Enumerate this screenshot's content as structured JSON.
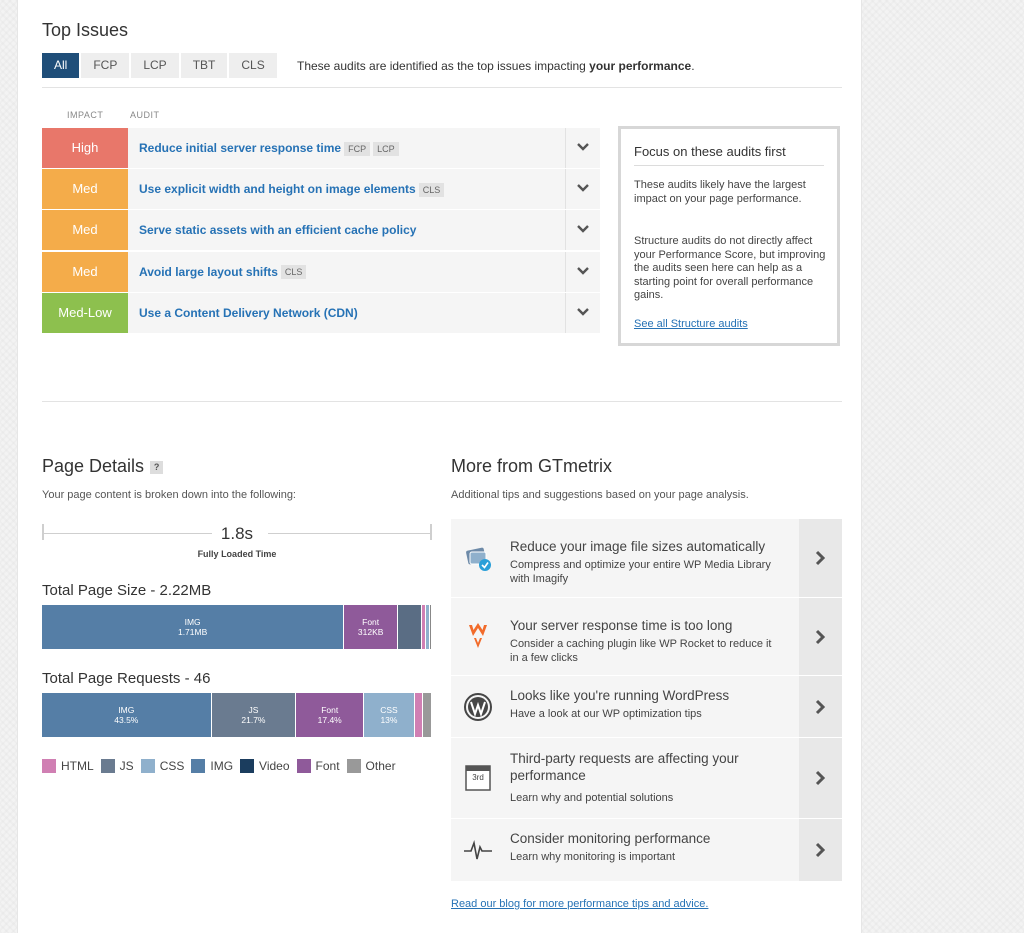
{
  "top_issues": {
    "title": "Top Issues",
    "tabs": [
      "All",
      "FCP",
      "LCP",
      "TBT",
      "CLS"
    ],
    "desc_prefix": "These audits are identified as the top issues impacting ",
    "desc_bold": "your performance",
    "desc_suffix": ".",
    "col_impact": "IMPACT",
    "col_audit": "AUDIT",
    "audits": [
      {
        "impact": "High",
        "color": "#e8776a",
        "title": "Reduce initial server response time",
        "tags": [
          "FCP",
          "LCP"
        ]
      },
      {
        "impact": "Med",
        "color": "#f4ac4a",
        "title": "Use explicit width and height on image elements",
        "tags": [
          "CLS"
        ]
      },
      {
        "impact": "Med",
        "color": "#f4ac4a",
        "title": "Serve static assets with an efficient cache policy",
        "tags": []
      },
      {
        "impact": "Med",
        "color": "#f4ac4a",
        "title": "Avoid large layout shifts",
        "tags": [
          "CLS"
        ]
      },
      {
        "impact": "Med-Low",
        "color": "#8dc04e",
        "title": "Use a Content Delivery Network (CDN)",
        "tags": []
      }
    ],
    "focus": {
      "title": "Focus on these audits first",
      "p1": "These audits likely have the largest impact on your page performance.",
      "p2": "Structure audits do not directly affect your Performance Score, but improving the audits seen here can help as a starting point for overall performance gains.",
      "link": "See all Structure audits"
    }
  },
  "page_details": {
    "title": "Page Details",
    "help": "?",
    "subtitle": "Your page content is broken down into the following:",
    "fully_loaded_value": "1.8s",
    "fully_loaded_label": "Fully Loaded Time",
    "size_title": "Total Page Size - 2.22MB",
    "size_segments": [
      {
        "label": "IMG",
        "value": "1.71MB",
        "share": 77.5,
        "color": "#557ea6"
      },
      {
        "label": "Font",
        "value": "312KB",
        "share": 13.8,
        "color": "#8f5a9a"
      },
      {
        "label": "",
        "value": "",
        "share": 6.2,
        "color": "#5a6d84"
      },
      {
        "label": "",
        "value": "",
        "share": 1.0,
        "color": "#d07fb3"
      },
      {
        "label": "",
        "value": "",
        "share": 1.0,
        "color": "#8fb0cc"
      },
      {
        "label": "",
        "value": "",
        "share": 0.5,
        "color": "#888888"
      }
    ],
    "requests_title": "Total Page Requests - 46",
    "request_segments": [
      {
        "label": "IMG",
        "value": "43.5%",
        "share": 43.5,
        "color": "#557ea6"
      },
      {
        "label": "JS",
        "value": "21.7%",
        "share": 21.7,
        "color": "#6a7b90"
      },
      {
        "label": "Font",
        "value": "17.4%",
        "share": 17.4,
        "color": "#8f5a9a"
      },
      {
        "label": "CSS",
        "value": "13%",
        "share": 13.0,
        "color": "#8fb0cc"
      },
      {
        "label": "",
        "value": "",
        "share": 2.2,
        "color": "#d07fb3"
      },
      {
        "label": "",
        "value": "",
        "share": 2.2,
        "color": "#999999"
      }
    ],
    "legend": [
      {
        "label": "HTML",
        "color": "#d07fb3"
      },
      {
        "label": "JS",
        "color": "#6a7b90"
      },
      {
        "label": "CSS",
        "color": "#8fb0cc"
      },
      {
        "label": "IMG",
        "color": "#557ea6"
      },
      {
        "label": "Video",
        "color": "#1b3d5e"
      },
      {
        "label": "Font",
        "color": "#8f5a9a"
      },
      {
        "label": "Other",
        "color": "#999999"
      }
    ]
  },
  "more": {
    "title": "More from GTmetrix",
    "subtitle": "Additional tips and suggestions based on your page analysis.",
    "tips": [
      {
        "icon": "imagify-icon",
        "title": "Reduce your image file sizes automatically",
        "desc": "Compress and optimize your entire WP Media Library with Imagify"
      },
      {
        "icon": "wp-rocket-icon",
        "title": "Your server response time is too long",
        "desc": "Consider a caching plugin like WP Rocket to reduce it in a few clicks"
      },
      {
        "icon": "wordpress-icon",
        "title": "Looks like you're running WordPress",
        "desc": "Have a look at our WP optimization tips"
      },
      {
        "icon": "third-party-icon",
        "title": "Third-party requests are affecting your performance",
        "desc": "Learn why and potential solutions",
        "badge": "3rd"
      },
      {
        "icon": "pulse-monitor-icon",
        "title": "Consider monitoring performance",
        "desc": "Learn why monitoring is important"
      }
    ],
    "blog_link": "Read our blog for more performance tips and advice."
  }
}
